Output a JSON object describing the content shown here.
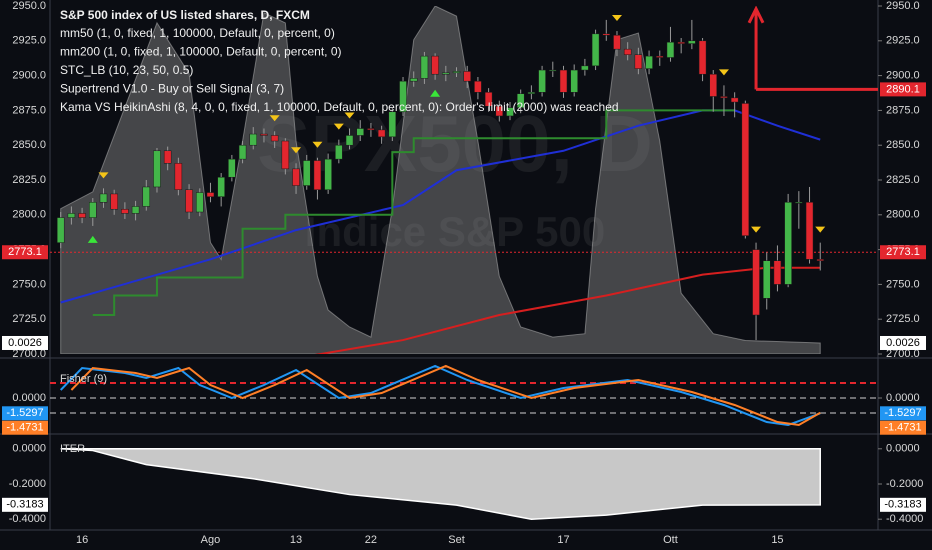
{
  "chart_data": [
    {
      "type": "candlestick",
      "title": "S&P 500 index of US listed shares, D, FXCM",
      "indicators": [
        "mm50 (1, 0, fixed, 1, 100000, Default, 0, percent, 0)",
        "mm200 (1, 0, fixed, 1, 100000, Default, 0, percent, 0)",
        "STC_LB (10, 23, 50, 0.5)",
        "Supertrend V1.0 - Buy or Sell Signal (3, 7)",
        "Kama VS HeikinAshi (8, 4, 0, 0, fixed, 1, 100000, Default, 0, percent, 0): Order's limit (2000) was reached"
      ],
      "watermark": [
        "SPX500, D",
        "Indice S&P 500"
      ],
      "categories": [
        null,
        null,
        "16",
        null,
        null,
        null,
        null,
        null,
        null,
        null,
        null,
        null,
        null,
        null,
        "Ago",
        null,
        null,
        null,
        null,
        null,
        null,
        null,
        "13",
        null,
        null,
        null,
        null,
        null,
        null,
        "22",
        null,
        null,
        null,
        null,
        null,
        null,
        null,
        "Set",
        null,
        null,
        null,
        null,
        null,
        null,
        null,
        null,
        null,
        "17",
        null,
        null,
        null,
        null,
        null,
        null,
        null,
        null,
        null,
        "Ott",
        null,
        null,
        null,
        null,
        null,
        null,
        null,
        null,
        null,
        "15",
        null,
        null,
        null,
        null
      ],
      "open": [
        2780,
        2798,
        2801,
        2798,
        2809,
        2815,
        2804,
        2801,
        2806,
        2820,
        2846,
        2837,
        2818,
        2802,
        2816,
        2813,
        2827,
        2840,
        2850,
        2858,
        2857,
        2853,
        2833,
        2821,
        2839,
        2818,
        2840,
        2850,
        2857,
        2862,
        2861,
        2856,
        2874,
        2896,
        2898,
        2914,
        2901,
        2902,
        2903,
        2896,
        2888,
        2878,
        2871,
        2877,
        2887,
        2888,
        2904,
        2904,
        2888,
        2904,
        2907,
        2930,
        2929,
        2919,
        2915,
        2905,
        2914,
        2913,
        2924,
        2923,
        2925,
        2901,
        2885,
        2884,
        2880,
        2775,
        2740,
        2767,
        2750,
        2809,
        2809,
        2768
      ],
      "high": [
        2802,
        2806,
        2805,
        2812,
        2819,
        2818,
        2809,
        2810,
        2825,
        2848,
        2849,
        2841,
        2822,
        2819,
        2823,
        2830,
        2843,
        2853,
        2863,
        2862,
        2860,
        2855,
        2837,
        2843,
        2841,
        2844,
        2854,
        2862,
        2868,
        2866,
        2864,
        2877,
        2899,
        2903,
        2917,
        2916,
        2907,
        2906,
        2907,
        2899,
        2891,
        2882,
        2881,
        2890,
        2893,
        2907,
        2910,
        2907,
        2908,
        2912,
        2933,
        2940,
        2932,
        2924,
        2920,
        2918,
        2918,
        2935,
        2927,
        2940,
        2927,
        2904,
        2893,
        2888,
        2882,
        2780,
        2773,
        2778,
        2815,
        2817,
        2820,
        2780
      ],
      "low": [
        2776,
        2793,
        2794,
        2792,
        2805,
        2800,
        2797,
        2796,
        2803,
        2816,
        2832,
        2814,
        2797,
        2799,
        2809,
        2806,
        2824,
        2837,
        2847,
        2852,
        2848,
        2829,
        2815,
        2818,
        2811,
        2815,
        2837,
        2847,
        2853,
        2856,
        2851,
        2853,
        2871,
        2892,
        2894,
        2897,
        2896,
        2899,
        2891,
        2883,
        2874,
        2867,
        2868,
        2873,
        2883,
        2885,
        2899,
        2884,
        2885,
        2900,
        2904,
        2925,
        2914,
        2911,
        2901,
        2901,
        2907,
        2910,
        2916,
        2919,
        2896,
        2874,
        2871,
        2870,
        2783,
        2710,
        2732,
        2745,
        2748,
        2790,
        2765,
        2760
      ],
      "close": [
        2798,
        2801,
        2798,
        2809,
        2815,
        2804,
        2801,
        2806,
        2820,
        2846,
        2837,
        2818,
        2802,
        2816,
        2813,
        2827,
        2840,
        2850,
        2858,
        2857,
        2853,
        2833,
        2821,
        2839,
        2818,
        2840,
        2850,
        2857,
        2862,
        2861,
        2856,
        2874,
        2896,
        2898,
        2914,
        2901,
        2902,
        2903,
        2896,
        2888,
        2878,
        2871,
        2877,
        2887,
        2888,
        2904,
        2904,
        2888,
        2904,
        2907,
        2930,
        2929,
        2919,
        2915,
        2905,
        2914,
        2913,
        2924,
        2923,
        2925,
        2901,
        2885,
        2884,
        2881,
        2785,
        2728,
        2767,
        2750,
        2809,
        2809,
        2768,
        2767
      ],
      "up_color": "#43b649",
      "down_color": "#e3262e",
      "xlim": [
        -1,
        76.4
      ],
      "ylim": [
        2700,
        2950
      ],
      "yticks": [
        {
          "value": 2700,
          "label": "2700.0"
        },
        {
          "value": 2725,
          "label": "2725.0"
        },
        {
          "value": 2750,
          "label": "2750.0"
        },
        {
          "value": 2775,
          "label": "2775.0"
        },
        {
          "value": 2800,
          "label": "2800.0"
        },
        {
          "value": 2825,
          "label": "2825.0"
        },
        {
          "value": 2850,
          "label": "2850.0"
        },
        {
          "value": 2875,
          "label": "2875.0"
        },
        {
          "value": 2900,
          "label": "2900.0"
        },
        {
          "value": 2925,
          "label": "2925.0"
        },
        {
          "value": 2950,
          "label": "2950.0"
        }
      ],
      "y2lim": [
        -0.03,
        1
      ],
      "area": {
        "color": "#8c8c8c",
        "axis": "y2",
        "x": [
          0,
          3,
          6,
          9,
          12,
          14,
          15,
          17,
          19,
          21,
          22,
          24,
          25,
          27,
          29,
          31,
          33,
          35,
          37,
          39,
          41,
          43,
          46,
          49,
          50,
          52,
          54,
          56,
          58,
          61,
          64,
          71
        ],
        "values": [
          0.4,
          0.45,
          0.7,
          0.95,
          0.8,
          0.3,
          0.25,
          0.6,
          0.98,
          0.95,
          0.6,
          0.2,
          0.1,
          0.05,
          0.02,
          0.4,
          0.9,
          1,
          0.97,
          0.6,
          0.2,
          0.05,
          0.02,
          0.03,
          0.4,
          0.9,
          0.92,
          0.6,
          0.15,
          0.03,
          0.01,
          0.0026
        ]
      },
      "lines": [
        {
          "color": "#1f2fd6",
          "x": [
            0,
            14,
            22,
            32,
            37,
            47,
            54,
            60,
            63,
            67,
            71
          ],
          "values": [
            2737,
            2768,
            2789,
            2807,
            2832,
            2846,
            2864,
            2875,
            2875,
            2864,
            2854
          ]
        },
        {
          "color": "#d61f1f",
          "x": [
            22,
            32,
            41,
            51,
            60,
            66,
            71
          ],
          "values": [
            2697,
            2710,
            2728,
            2742,
            2757,
            2762,
            2762
          ]
        },
        {
          "color": "#2e8b2e",
          "step": true,
          "x": [
            3,
            5,
            9,
            17,
            21,
            31,
            33,
            51,
            63
          ],
          "values": [
            2728,
            2742,
            2755,
            2790,
            2800,
            2845,
            2855,
            2875,
            2875
          ]
        }
      ],
      "levels": [
        {
          "value": 2890.1,
          "color": "#e3262e",
          "from": 65,
          "arrow_top": 2948
        },
        {
          "value": 2773.1,
          "color": "#e3262e",
          "dotted": true
        }
      ],
      "sell_signals": [
        4,
        20,
        22,
        24,
        26,
        27,
        52,
        62,
        65,
        71
      ],
      "buy_signals": [
        3,
        35
      ]
    },
    {
      "type": "line",
      "title": "Fisher (9)",
      "xlim": [
        -1,
        76.4
      ],
      "ylim": [
        -3,
        3.6
      ],
      "yticks": [
        {
          "value": 0,
          "label": "0.0000"
        }
      ],
      "levels": [
        {
          "value": 1.5,
          "color": "#e3262e"
        },
        {
          "value": 0,
          "color": "#d0d0d0"
        },
        {
          "value": -1.5,
          "color": "#d0d0d0"
        }
      ],
      "series": [
        {
          "color": "#2196f3",
          "x": [
            0,
            2,
            6,
            8,
            11,
            13,
            16,
            19,
            22,
            26,
            29,
            35,
            38,
            43,
            47,
            53,
            58,
            62,
            66,
            68,
            71
          ],
          "values": [
            0.8,
            3,
            2.5,
            2,
            3,
            1.3,
            0,
            1.3,
            2.8,
            0,
            0.5,
            3.2,
            1.8,
            0,
            1,
            1.8,
            0.6,
            -0.7,
            -2.4,
            -2.7,
            -1.5297
          ]
        },
        {
          "color": "#ff7f27",
          "x": [
            1,
            3,
            7,
            9,
            12,
            14,
            17,
            20,
            23,
            27,
            30,
            36,
            39,
            44,
            48,
            54,
            59,
            63,
            67,
            69,
            71
          ],
          "values": [
            0.8,
            3,
            2.5,
            2,
            3,
            1.3,
            0,
            1.3,
            2.8,
            0,
            0.5,
            3.2,
            1.8,
            0,
            1,
            1.8,
            0.6,
            -0.7,
            -2.4,
            -2.7,
            -1.4731
          ]
        }
      ]
    },
    {
      "type": "area",
      "title": "ITER",
      "xlim": [
        -1,
        76.4
      ],
      "ylim": [
        -0.45,
        0.05
      ],
      "yticks": [
        {
          "value": 0,
          "label": "0.0000"
        },
        {
          "value": -0.2,
          "label": "-0.2000"
        },
        {
          "value": -0.4,
          "label": "-0.4000"
        }
      ],
      "color": "#c8c8c8",
      "x": [
        0,
        3,
        8,
        18,
        27,
        37,
        44,
        51,
        60,
        71
      ],
      "values": [
        0,
        -0.01,
        -0.09,
        -0.17,
        -0.26,
        -0.32,
        -0.4,
        -0.377,
        -0.32,
        -0.3183
      ]
    }
  ]
}
